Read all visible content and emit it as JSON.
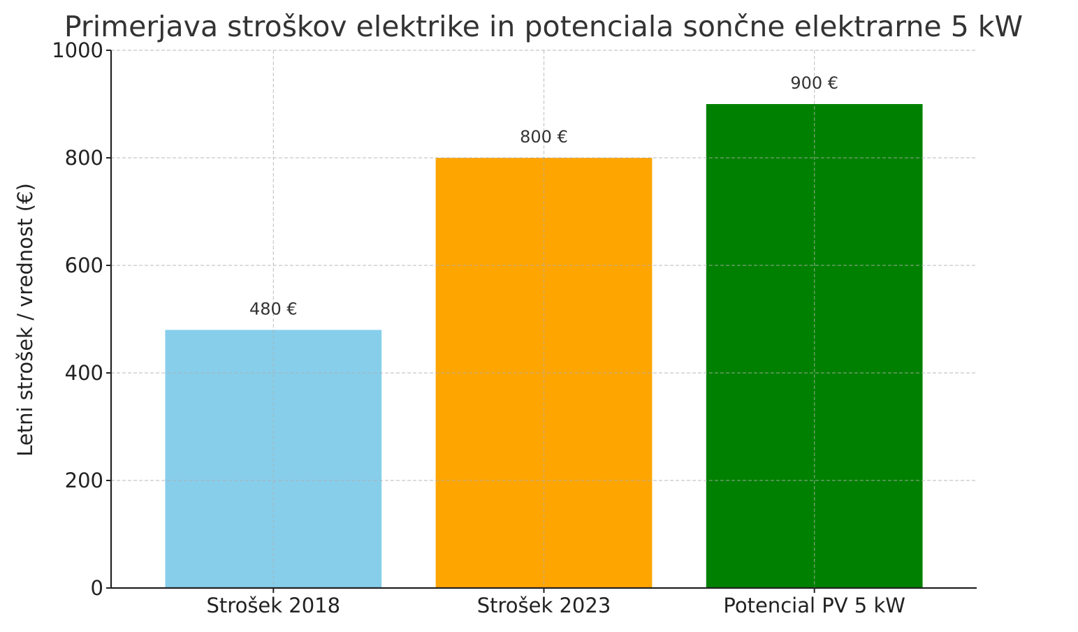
{
  "chart_data": {
    "type": "bar",
    "title": "Primerjava stroškov elektrike in potenciala sončne elektrarne 5 kW",
    "xlabel": "",
    "ylabel": "Letni strošek / vrednost (€)",
    "categories": [
      "Strošek 2018",
      "Strošek 2023",
      "Potencial PV 5 kW"
    ],
    "values": [
      480,
      800,
      900
    ],
    "value_labels": [
      "480 €",
      "800 €",
      "900 €"
    ],
    "colors": [
      "#87ceeb",
      "#ffa500",
      "#008000"
    ],
    "ylim": [
      0,
      1000
    ],
    "yticks": [
      0,
      200,
      400,
      600,
      800,
      1000
    ],
    "grid": true
  }
}
